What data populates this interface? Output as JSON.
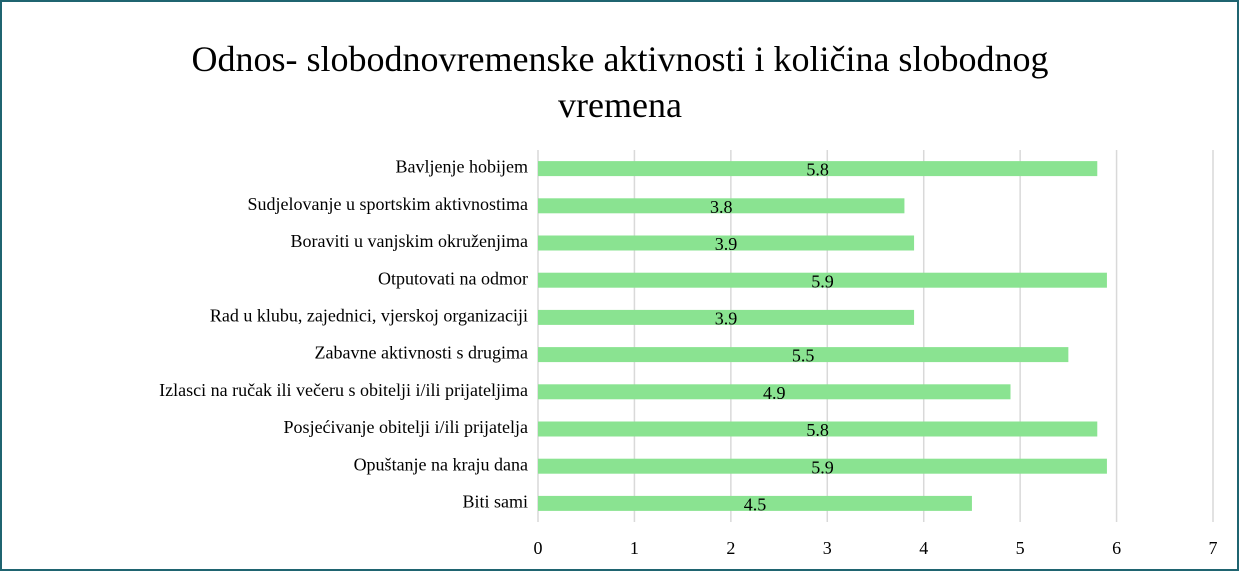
{
  "chart_data": {
    "type": "barh",
    "title": "Odnos- slobodnovremenske aktivnosti i količina slobodnog vremena",
    "categories": [
      "Bavljenje hobijem",
      "Sudjelovanje u sportskim aktivnostima",
      "Boraviti u vanjskim okruženjima",
      "Otputovati na odmor",
      "Rad u klubu, zajednici, vjerskoj organizaciji",
      "Zabavne aktivnosti s drugima",
      "Izlasci na ručak ili večeru s obitelji i/ili prijateljima",
      "Posjećivanje obitelji i/ili prijatelja",
      "Opuštanje na kraju dana",
      "Biti sami"
    ],
    "values": [
      5.8,
      3.8,
      3.9,
      5.9,
      3.9,
      5.5,
      4.9,
      5.8,
      5.9,
      4.5
    ],
    "color": "#8ae391",
    "xlim": [
      0,
      7
    ],
    "xticks": [
      0,
      1,
      2,
      3,
      4,
      5,
      6,
      7
    ],
    "grid": true
  }
}
